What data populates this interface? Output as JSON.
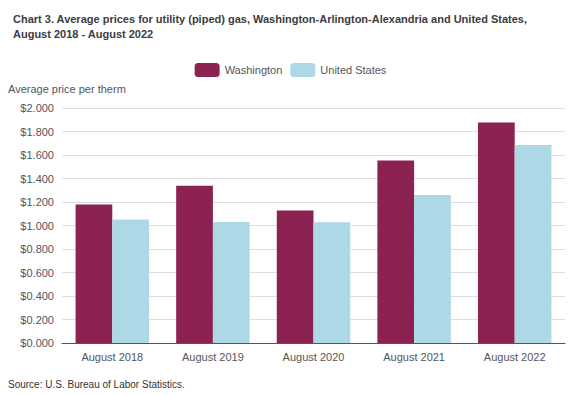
{
  "chart_data": {
    "type": "bar",
    "title": "Chart 3. Average prices for utility (piped) gas, Washington-Arlington-Alexandria and United States,\nAugust 2018 - August 2022",
    "ylabel": "Average price per therm",
    "annotations": [
      "Source: U.S. Bureau of Labor Statistics."
    ],
    "categories": [
      "August 2018",
      "August 2019",
      "August 2020",
      "August 2021",
      "August 2022"
    ],
    "series": [
      {
        "name": "Washington",
        "color": "#8B2252",
        "values": [
          1.178,
          1.338,
          1.128,
          1.554,
          1.876
        ]
      },
      {
        "name": "United States",
        "color": "#ADD8E6",
        "values": [
          1.052,
          1.03,
          1.028,
          1.26,
          1.686
        ]
      }
    ],
    "ylim": [
      0,
      2.0
    ],
    "yticks": [
      {
        "value": 0.0,
        "label": "$0.000"
      },
      {
        "value": 0.2,
        "label": "$0.200"
      },
      {
        "value": 0.4,
        "label": "$0.400"
      },
      {
        "value": 0.6,
        "label": "$0.600"
      },
      {
        "value": 0.8,
        "label": "$0.800"
      },
      {
        "value": 1.0,
        "label": "$1.000"
      },
      {
        "value": 1.2,
        "label": "$1.200"
      },
      {
        "value": 1.4,
        "label": "$1.400"
      },
      {
        "value": 1.6,
        "label": "$1.600"
      },
      {
        "value": 1.8,
        "label": "$1.800"
      },
      {
        "value": 2.0,
        "label": "$2.000"
      }
    ],
    "grid": true,
    "legend": "top"
  }
}
